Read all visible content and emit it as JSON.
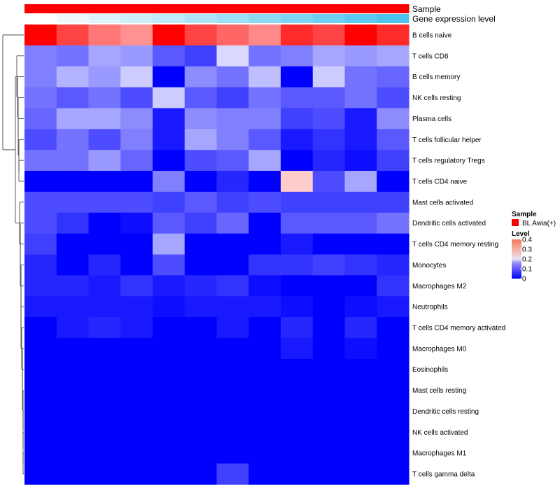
{
  "chart_data": {
    "type": "heatmap",
    "title": "",
    "rows": [
      "B cells naive",
      "T cells CD8",
      "B cells memory",
      "NK cells resting",
      "Plasma cells",
      "T cells follicular helper",
      "T cells regulatory  Tregs",
      "T cells CD4 naive",
      "Mast cells activated",
      "Dendritic cells activated",
      "T cells CD4 memory resting",
      "Monocytes",
      "Macrophages M2",
      "Neutrophils",
      "T cells CD4 memory activated",
      "Macrophages M0",
      "Eosinophils",
      "Mast cells resting",
      "Dendritic cells resting",
      "NK cells activated",
      "Macrophages M1",
      "T cells gamma delta"
    ],
    "values": [
      [
        0.5,
        0.42,
        0.36,
        0.33,
        0.5,
        0.42,
        0.38,
        0.34,
        0.45,
        0.42,
        0.5,
        0.45
      ],
      [
        0.1,
        0.09,
        0.13,
        0.12,
        0.07,
        0.05,
        0.17,
        0.09,
        0.1,
        0.13,
        0.12,
        0.13
      ],
      [
        0.1,
        0.14,
        0.12,
        0.16,
        0.0,
        0.11,
        0.09,
        0.15,
        0.0,
        0.16,
        0.09,
        0.08
      ],
      [
        0.09,
        0.07,
        0.09,
        0.06,
        0.16,
        0.07,
        0.05,
        0.09,
        0.07,
        0.07,
        0.09,
        0.06
      ],
      [
        0.08,
        0.13,
        0.13,
        0.11,
        0.02,
        0.11,
        0.1,
        0.1,
        0.05,
        0.06,
        0.02,
        0.11
      ],
      [
        0.06,
        0.09,
        0.06,
        0.1,
        0.02,
        0.13,
        0.1,
        0.07,
        0.02,
        0.04,
        0.02,
        0.07
      ],
      [
        0.09,
        0.09,
        0.12,
        0.08,
        0.0,
        0.06,
        0.07,
        0.13,
        0.0,
        0.03,
        0.01,
        0.05
      ],
      [
        0.0,
        0.0,
        0.0,
        0.0,
        0.1,
        0.0,
        0.03,
        0.0,
        0.26,
        0.06,
        0.13,
        0.0
      ],
      [
        0.06,
        0.06,
        0.06,
        0.06,
        0.05,
        0.07,
        0.05,
        0.06,
        0.05,
        0.05,
        0.05,
        0.05
      ],
      [
        0.06,
        0.04,
        0.0,
        0.01,
        0.07,
        0.05,
        0.08,
        0.0,
        0.07,
        0.07,
        0.07,
        0.09
      ],
      [
        0.05,
        0.0,
        0.0,
        0.0,
        0.13,
        0.0,
        0.0,
        0.0,
        0.02,
        0.0,
        0.0,
        0.0
      ],
      [
        0.03,
        0.0,
        0.03,
        0.0,
        0.06,
        0.0,
        0.0,
        0.04,
        0.04,
        0.05,
        0.04,
        0.03
      ],
      [
        0.03,
        0.03,
        0.02,
        0.04,
        0.02,
        0.03,
        0.04,
        0.01,
        0.0,
        0.0,
        0.0,
        0.04
      ],
      [
        0.02,
        0.02,
        0.02,
        0.02,
        0.01,
        0.02,
        0.02,
        0.02,
        0.01,
        0.0,
        0.01,
        0.02
      ],
      [
        0.0,
        0.02,
        0.03,
        0.02,
        0.0,
        0.0,
        0.02,
        0.0,
        0.03,
        0.0,
        0.03,
        0.0
      ],
      [
        0.0,
        0.0,
        0.0,
        0.0,
        0.0,
        0.0,
        0.0,
        0.0,
        0.02,
        0.0,
        0.01,
        0.0
      ],
      [
        0.0,
        0.0,
        0.0,
        0.0,
        0.0,
        0.0,
        0.0,
        0.0,
        0.0,
        0.0,
        0.0,
        0.0
      ],
      [
        0.0,
        0.0,
        0.0,
        0.0,
        0.0,
        0.0,
        0.0,
        0.0,
        0.0,
        0.0,
        0.0,
        0.0
      ],
      [
        0.0,
        0.0,
        0.0,
        0.0,
        0.0,
        0.0,
        0.0,
        0.0,
        0.0,
        0.0,
        0.0,
        0.0
      ],
      [
        0.0,
        0.0,
        0.0,
        0.0,
        0.0,
        0.0,
        0.0,
        0.0,
        0.0,
        0.0,
        0.0,
        0.0
      ],
      [
        0.0,
        0.0,
        0.0,
        0.0,
        0.0,
        0.0,
        0.0,
        0.0,
        0.0,
        0.0,
        0.0,
        0.0
      ],
      [
        0.0,
        0.0,
        0.0,
        0.0,
        0.0,
        0.0,
        0.05,
        0.0,
        0.0,
        0.0,
        0.0,
        0.0
      ]
    ],
    "annotations": {
      "sample": {
        "label": "Sample",
        "values": [
          "BL Awia(+)",
          "BL Awia(+)",
          "BL Awia(+)",
          "BL Awia(+)",
          "BL Awia(+)",
          "BL Awia(+)",
          "BL Awia(+)",
          "BL Awia(+)",
          "BL Awia(+)",
          "BL Awia(+)",
          "BL Awia(+)",
          "BL Awia(+)"
        ],
        "color": "#ff0000"
      },
      "gene_expression_level": {
        "label": "Gene expression level",
        "values": [
          0,
          1,
          2,
          3,
          4,
          5,
          6,
          7,
          8,
          9,
          10,
          11
        ],
        "color_low": "#ffffff",
        "color_high": "#4cc4ee"
      }
    },
    "legend": {
      "position": "right",
      "sample": {
        "title": "Sample",
        "entries": [
          {
            "label": "BL Awia(+)",
            "color": "#ff0000"
          }
        ]
      },
      "level": {
        "title": "Level",
        "range": [
          0,
          0.4
        ],
        "ticks": [
          {
            "value": 0,
            "label": "0"
          },
          {
            "value": 0.1,
            "label": "0.1"
          },
          {
            "value": 0.2,
            "label": "0.2"
          },
          {
            "value": 0.3,
            "label": "0.3"
          },
          {
            "value": 0.4,
            "label": "0.4"
          }
        ]
      }
    },
    "color_scale": {
      "domain": [
        0,
        0.2,
        0.5
      ],
      "colors": [
        "#0000ff",
        "#ffffff",
        "#ff0000"
      ]
    },
    "dendrogram": "rows",
    "column_labels_shown": false
  }
}
